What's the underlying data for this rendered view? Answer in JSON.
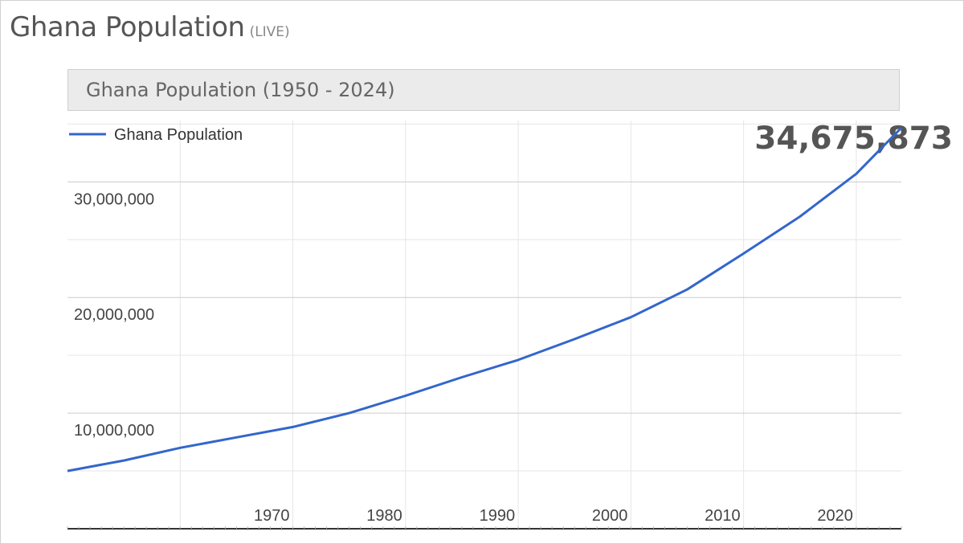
{
  "header": {
    "title": "Ghana Population",
    "live_tag": "(LIVE)"
  },
  "chart_data": {
    "type": "line",
    "title": "Ghana Population (1950 - 2024)",
    "current_value": "34,675,873",
    "legend_position": "top-left",
    "grid": true,
    "xlabel": "",
    "ylabel": "",
    "xlim": [
      1950,
      2024
    ],
    "ylim": [
      0,
      36000000
    ],
    "x_ticks": [
      1970,
      1980,
      1990,
      2000,
      2010,
      2020
    ],
    "x_tick_labels": [
      "1970",
      "1980",
      "1990",
      "2000",
      "2010",
      "2020"
    ],
    "y_ticks": [
      10000000,
      20000000,
      30000000
    ],
    "y_tick_labels": [
      "10,000,000",
      "20,000,000",
      "30,000,000"
    ],
    "colors": {
      "series": "#3366cc",
      "grid": "#cccccc",
      "minor_grid": "#e6e6e6"
    },
    "series": [
      {
        "name": "Ghana Population",
        "x": [
          1950,
          1955,
          1960,
          1965,
          1970,
          1975,
          1980,
          1985,
          1990,
          1995,
          2000,
          2005,
          2010,
          2015,
          2020,
          2024
        ],
        "y": [
          5000000,
          5900000,
          7000000,
          7900000,
          8800000,
          10000000,
          11500000,
          13100000,
          14600000,
          16400000,
          18300000,
          20700000,
          23800000,
          27000000,
          30700000,
          34675873
        ]
      }
    ]
  }
}
